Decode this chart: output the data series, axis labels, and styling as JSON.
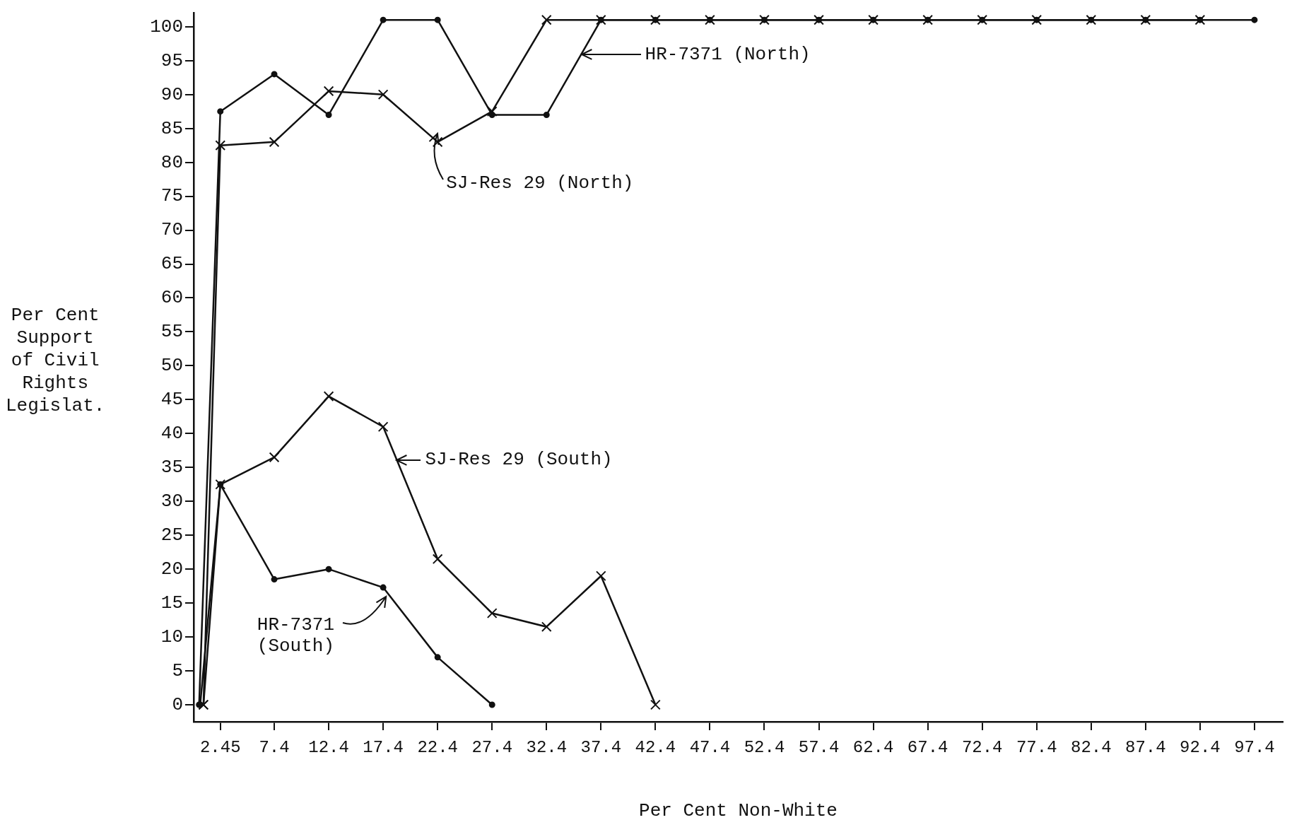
{
  "chart_data": {
    "type": "line",
    "xlabel": "Per Cent Non-White",
    "ylabel": "Per Cent Support of Civil Rights Legislat.",
    "xlim": [
      0,
      100
    ],
    "ylim": [
      -2.5,
      102
    ],
    "xticks": [
      2.45,
      7.4,
      12.4,
      17.4,
      22.4,
      27.4,
      32.4,
      37.4,
      42.4,
      47.4,
      52.4,
      57.4,
      62.4,
      67.4,
      72.4,
      77.4,
      82.4,
      87.4,
      92.4,
      97.4
    ],
    "yticks": [
      0,
      5,
      10,
      15,
      20,
      25,
      30,
      35,
      40,
      45,
      50,
      55,
      60,
      65,
      70,
      75,
      80,
      85,
      90,
      95,
      100
    ],
    "grid": false,
    "legend": "top",
    "line_style": "solid",
    "series": [
      {
        "name": "HR-7371 (North)",
        "color": "#111111",
        "marker": "circle",
        "x": [
          0.5,
          2.45,
          7.4,
          12.4,
          17.4,
          22.4,
          27.4,
          32.4,
          37.4,
          42.4,
          47.4,
          52.4,
          57.4,
          62.4,
          67.4,
          72.4,
          77.4,
          82.4,
          87.4,
          92.4,
          97.4
        ],
        "values": [
          0,
          87.5,
          93,
          87,
          101,
          101,
          87,
          87,
          101,
          101,
          101,
          101,
          101,
          101,
          101,
          101,
          101,
          101,
          101,
          101,
          101
        ]
      },
      {
        "name": "SJ-Res 29 (North)",
        "color": "#111111",
        "marker": "cross",
        "x": [
          0.9,
          2.45,
          7.4,
          12.4,
          17.4,
          22.4,
          27.4,
          32.4,
          37.4,
          42.4,
          47.4,
          52.4,
          57.4,
          62.4,
          67.4,
          72.4,
          77.4,
          82.4,
          87.4,
          92.4
        ],
        "values": [
          0,
          82.5,
          83,
          90.5,
          90,
          83,
          87.5,
          101,
          101,
          101,
          101,
          101,
          101,
          101,
          101,
          101,
          101,
          101,
          101,
          101
        ]
      },
      {
        "name": "SJ-Res 29 (South)",
        "color": "#111111",
        "marker": "cross",
        "x": [
          0.9,
          2.45,
          7.4,
          12.4,
          17.4,
          22.4,
          27.4,
          32.4,
          37.4,
          42.4
        ],
        "values": [
          0,
          32.5,
          36.5,
          45.5,
          41,
          21.5,
          13.5,
          11.5,
          19,
          0
        ]
      },
      {
        "name": "HR-7371 (South)",
        "color": "#111111",
        "marker": "circle",
        "x": [
          0.6,
          2.45,
          7.4,
          12.4,
          17.4,
          22.4,
          27.4
        ],
        "values": [
          0,
          32.5,
          18.5,
          20,
          17.3,
          7,
          0
        ]
      }
    ]
  }
}
